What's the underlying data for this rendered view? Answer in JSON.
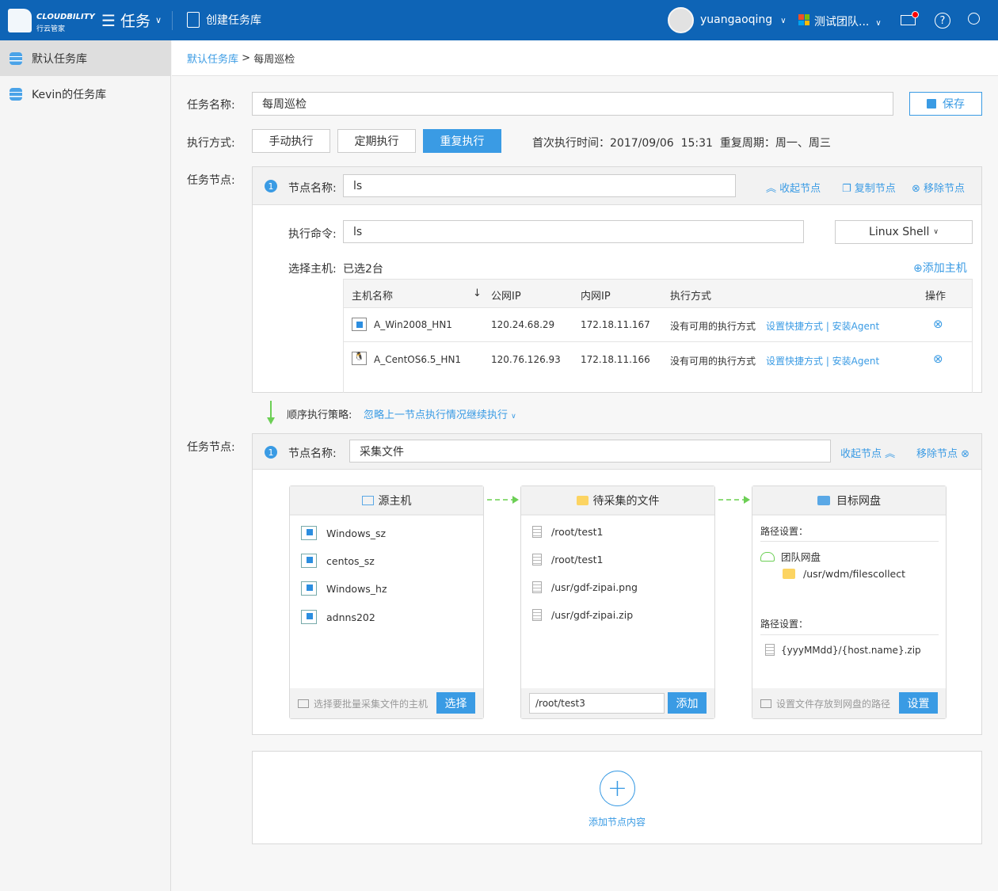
{
  "header": {
    "logo_text": "CLOUDBILITY",
    "logo_sub": "行云管家",
    "module": "任务",
    "create_repo": "创建任务库",
    "user": "yuangaoqing",
    "team": "测试团队...",
    "icons": [
      "menu-icon",
      "clipboard-icon",
      "mail-icon",
      "help-icon",
      "search-icon"
    ],
    "brand_color": "#0e64b6"
  },
  "sidebar": {
    "items": [
      {
        "label": "默认任务库"
      },
      {
        "label": "Kevin的任务库"
      }
    ]
  },
  "breadcrumb": {
    "root": "默认任务库",
    "sep": ">",
    "current": "每周巡检"
  },
  "form": {
    "name_label": "任务名称:",
    "name_value": "每周巡检",
    "save": "保存",
    "exec_label": "执行方式:",
    "exec_modes": [
      "手动执行",
      "定期执行",
      "重复执行"
    ],
    "exec_selected": "重复执行",
    "schedule": "首次执行时间：2017/09/06  15:31  重复周期：周一、周三",
    "node_label": "任务节点:"
  },
  "node1": {
    "index": "1",
    "name_label": "节点名称:",
    "name_value": "ls",
    "collapse": "收起节点",
    "copy": "复制节点",
    "remove": "移除节点",
    "cmd_label": "执行命令:",
    "cmd_value": "ls",
    "shell": "Linux Shell",
    "host_label": "选择主机:",
    "host_count": "已选2台",
    "add_host": "添加主机",
    "columns": [
      "主机名称",
      "公网IP",
      "内网IP",
      "执行方式",
      "操作"
    ],
    "rows": [
      {
        "name": "A_Win2008_HN1",
        "os": "windows",
        "public_ip": "120.24.68.29",
        "private_ip": "172.18.11.167",
        "exec": "没有可用的执行方式",
        "links": "设置快捷方式 | 安装Agent"
      },
      {
        "name": "A_CentOS6.5_HN1",
        "os": "linux",
        "public_ip": "120.76.126.93",
        "private_ip": "172.18.11.166",
        "exec": "没有可用的执行方式",
        "links": "设置快捷方式 | 安装Agent"
      }
    ]
  },
  "strategy": {
    "label": "顺序执行策略:",
    "value": "忽略上一节点执行情况继续执行"
  },
  "node2": {
    "index": "1",
    "name_label": "节点名称:",
    "name_value": "采集文件",
    "collapse": "收起节点",
    "remove": "移除节点",
    "source": {
      "title": "源主机",
      "items": [
        "Windows_sz",
        "centos_sz",
        "Windows_hz",
        "adnns202"
      ],
      "hint": "选择要批量采集文件的主机",
      "button": "选择"
    },
    "files": {
      "title": "待采集的文件",
      "items": [
        "/root/test1",
        "/root/test1",
        "/usr/gdf-zipai.png",
        "/usr/gdf-zipai.zip"
      ],
      "input_value": "/root/test3",
      "button": "添加"
    },
    "target": {
      "title": "目标网盘",
      "path_label1": "路径设置：",
      "disk": "团队网盘",
      "folder": "/usr/wdm/filescollect",
      "path_label2": "路径设置：",
      "pattern": "{yyyMMdd}/{host.name}.zip",
      "hint": "设置文件存放到网盘的路径",
      "button": "设置"
    }
  },
  "add_node": {
    "label": "添加节点内容"
  }
}
